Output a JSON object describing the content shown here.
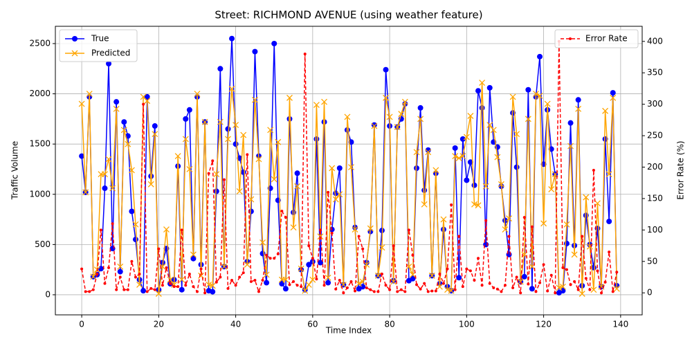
{
  "chart_data": {
    "type": "line",
    "title": "Street: RICHMOND AVENUE (using weather feature)",
    "x_label": "Time Index",
    "y_label": "Traffic Volume",
    "y2_label": "Error Rate (%)",
    "x": [
      0,
      1,
      2,
      3,
      4,
      5,
      6,
      7,
      8,
      9,
      10,
      11,
      12,
      13,
      14,
      15,
      16,
      17,
      18,
      19,
      20,
      21,
      22,
      23,
      24,
      25,
      26,
      27,
      28,
      29,
      30,
      31,
      32,
      33,
      34,
      35,
      36,
      37,
      38,
      39,
      40,
      41,
      42,
      43,
      44,
      45,
      46,
      47,
      48,
      49,
      50,
      51,
      52,
      53,
      54,
      55,
      56,
      57,
      58,
      59,
      60,
      61,
      62,
      63,
      64,
      65,
      66,
      67,
      68,
      69,
      70,
      71,
      72,
      73,
      74,
      75,
      76,
      77,
      78,
      79,
      80,
      81,
      82,
      83,
      84,
      85,
      86,
      87,
      88,
      89,
      90,
      91,
      92,
      93,
      94,
      95,
      96,
      97,
      98,
      99,
      100,
      101,
      102,
      103,
      104,
      105,
      106,
      107,
      108,
      109,
      110,
      111,
      112,
      113,
      114,
      115,
      116,
      117,
      118,
      119,
      120,
      121,
      122,
      123,
      124,
      125,
      126,
      127,
      128,
      129,
      130,
      131,
      132,
      133,
      134,
      135,
      136,
      137,
      138,
      139
    ],
    "series": [
      {
        "name": "True",
        "color": "#0000ff",
        "marker": "circle",
        "line": "solid",
        "values": [
          1380,
          1020,
          1970,
          180,
          200,
          260,
          1060,
          2300,
          460,
          1920,
          230,
          1720,
          1580,
          830,
          550,
          150,
          40,
          1970,
          1180,
          1680,
          50,
          320,
          460,
          110,
          150,
          1280,
          50,
          1750,
          1840,
          360,
          1970,
          300,
          1720,
          40,
          30,
          1030,
          2250,
          280,
          1650,
          2550,
          1500,
          1360,
          1220,
          330,
          830,
          2420,
          1380,
          410,
          120,
          1060,
          2500,
          940,
          110,
          60,
          1750,
          820,
          1210,
          250,
          50,
          300,
          330,
          1550,
          320,
          1720,
          120,
          650,
          1010,
          1260,
          100,
          1640,
          1520,
          670,
          60,
          80,
          320,
          630,
          1690,
          190,
          640,
          2240,
          1680,
          140,
          1670,
          1750,
          1900,
          140,
          160,
          1260,
          1860,
          1040,
          1440,
          190,
          1210,
          110,
          650,
          80,
          40,
          1460,
          170,
          1550,
          1140,
          1320,
          1090,
          2030,
          1860,
          500,
          2060,
          1520,
          1470,
          1080,
          740,
          400,
          1810,
          1270,
          130,
          180,
          2040,
          60,
          1970,
          2370,
          1300,
          1840,
          1450,
          1200,
          20,
          40,
          510,
          1710,
          490,
          1940,
          90,
          790,
          500,
          270,
          660,
          80,
          1550,
          730,
          2010,
          90
        ]
      },
      {
        "name": "Predicted",
        "color": "#ffa500",
        "marker": "x",
        "line": "solid",
        "values": [
          1900,
          1020,
          2000,
          180,
          250,
          1200,
          1200,
          1350,
          1060,
          1850,
          280,
          1640,
          1500,
          1240,
          700,
          100,
          1970,
          1930,
          1100,
          1600,
          10,
          280,
          650,
          150,
          100,
          1380,
          150,
          1550,
          1250,
          400,
          2000,
          190,
          1720,
          100,
          90,
          1200,
          1720,
          280,
          1550,
          2050,
          1690,
          1030,
          1590,
          300,
          950,
          1940,
          1350,
          520,
          200,
          1640,
          1150,
          1520,
          150,
          150,
          1960,
          670,
          1080,
          260,
          40,
          100,
          150,
          1890,
          580,
          1920,
          170,
          1260,
          950,
          1000,
          100,
          1770,
          1270,
          650,
          110,
          130,
          300,
          660,
          1680,
          190,
          470,
          1960,
          1770,
          130,
          1670,
          1800,
          1920,
          280,
          200,
          1420,
          1750,
          900,
          1420,
          190,
          1240,
          80,
          750,
          50,
          40,
          1380,
          1360,
          1380,
          1570,
          1780,
          900,
          890,
          2110,
          1080,
          1690,
          1640,
          1370,
          1100,
          650,
          760,
          1970,
          1600,
          130,
          400,
          1750,
          280,
          2000,
          1980,
          710,
          1900,
          1050,
          1200,
          70,
          80,
          700,
          1480,
          400,
          1850,
          10,
          970,
          480,
          50,
          910,
          80,
          1830,
          1200,
          1960,
          60
        ]
      },
      {
        "name": "Error Rate",
        "color": "#ff0000",
        "marker": "dot",
        "line": "dashed",
        "axis": "y2",
        "values": [
          38,
          2,
          2,
          5,
          30,
          100,
          15,
          40,
          110,
          5,
          25,
          5,
          5,
          50,
          25,
          30,
          300,
          2,
          7,
          5,
          70,
          12,
          40,
          15,
          10,
          10,
          100,
          12,
          30,
          10,
          2,
          38,
          0,
          190,
          210,
          17,
          25,
          180,
          7,
          20,
          12,
          25,
          32,
          220,
          18,
          20,
          2,
          20,
          60,
          55,
          55,
          62,
          130,
          120,
          13,
          18,
          12,
          10,
          380,
          75,
          55,
          22,
          100,
          12,
          160,
          95,
          6,
          20,
          0,
          8,
          18,
          3,
          90,
          70,
          8,
          5,
          2,
          2,
          30,
          12,
          5,
          75,
          2,
          5,
          2,
          100,
          60,
          13,
          6,
          15,
          2,
          3,
          3,
          30,
          15,
          38,
          140,
          5,
          90,
          10,
          38,
          35,
          20,
          55,
          12,
          115,
          15,
          8,
          6,
          2,
          12,
          90,
          8,
          25,
          0,
          120,
          14,
          105,
          2,
          16,
          45,
          3,
          28,
          0,
          400,
          40,
          37,
          13,
          18,
          5,
          90,
          23,
          5,
          195,
          35,
          0,
          17,
          65,
          2,
          33
        ]
      }
    ],
    "xlim": [
      -6.85,
      145.6
    ],
    "xticks": [
      0,
      20,
      40,
      60,
      80,
      100,
      120,
      140
    ],
    "ylim": [
      -200,
      2672
    ],
    "yticks": [
      0,
      500,
      1000,
      1500,
      2000,
      2500
    ],
    "y2lim": [
      -35,
      424
    ],
    "y2ticks": [
      0,
      50,
      100,
      150,
      200,
      250,
      300,
      350,
      400
    ],
    "grid": true,
    "legend": "upper left",
    "legend2": "upper right"
  }
}
